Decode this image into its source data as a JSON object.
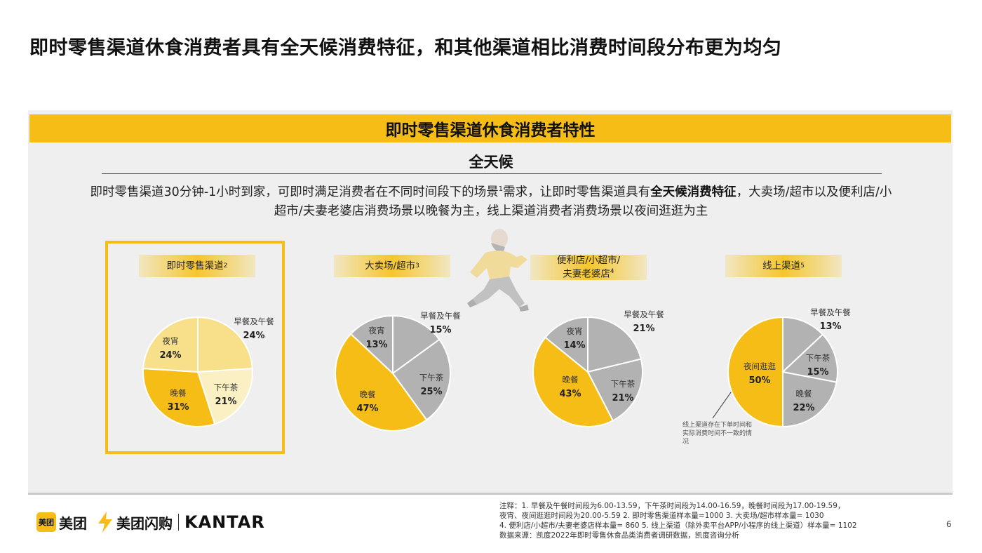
{
  "page": {
    "title": "即时零售渠道休食消费者具有全天候消费特征，和其他渠道相比消费时间段分布更为均匀",
    "banner": "即时零售渠道休食消费者特性",
    "subtitle": "全天候",
    "desc_part1": "即时零售渠道30分钟-1小时到家，可即时满足消费者在不同时间段下的场景",
    "desc_sup": "1",
    "desc_part2": "需求，让即时零售渠道具有",
    "desc_bold": "全天候消费特征",
    "desc_part3": "，大卖场/超市以及便利店/小超市/夫妻老婆店消费场景以晚餐为主，线上渠道消费者消费场景以夜间逛逛为主",
    "side_note": "线上渠道存在下单时间和实际消费时间不一致的情况",
    "page_number": "6"
  },
  "footer": {
    "logo1_box": "美团",
    "logo1_text": "美团",
    "logo2_text": "美团闪购",
    "logo3_text": "KANTAR",
    "note1": "注释：1. 早餐及午餐时间段为6.00-13.59，下午茶时间段为14.00-16.59，晚餐时间段为17.00-19.59，",
    "note2": "夜宵、夜间逛逛时间段为20.00-5.59  2. 即时零售渠道样本量=1000  3. 大卖场/超市样本量= 1030",
    "note3": "4. 便利店/小超市/夫妻老婆店样本量= 860  5. 线上渠道（除外卖平台APP/小程序的线上渠道）样本量= 1102",
    "note4": "数据来源：凯度2022年即时零售休食品类消费者调研数据，凯度咨询分析"
  },
  "colors": {
    "accent": "#f6bd16",
    "light_yellow": "#f8e08a",
    "pale_yellow": "#fbf0c4",
    "grey": "#b2b2b2"
  },
  "chart_data": [
    {
      "type": "pie",
      "title": "即时零售渠道",
      "title_sup": "2",
      "slices": [
        {
          "label": "早餐及午餐",
          "value": 24,
          "display": "24%",
          "color": "#f8e08a"
        },
        {
          "label": "下午茶",
          "value": 21,
          "display": "21%",
          "color": "#fbf0c4"
        },
        {
          "label": "晚餐",
          "value": 31,
          "display": "31%",
          "color": "#f6bd16"
        },
        {
          "label": "夜宵",
          "value": 24,
          "display": "24%",
          "color": "#f8e08a"
        }
      ]
    },
    {
      "type": "pie",
      "title": "大卖场/超市",
      "title_sup": "3",
      "slices": [
        {
          "label": "早餐及午餐",
          "value": 15,
          "display": "15%",
          "color": "#b2b2b2"
        },
        {
          "label": "下午茶",
          "value": 25,
          "display": "25%",
          "color": "#b2b2b2"
        },
        {
          "label": "晚餐",
          "value": 47,
          "display": "47%",
          "color": "#f6bd16"
        },
        {
          "label": "夜宵",
          "value": 13,
          "display": "13%",
          "color": "#b2b2b2"
        }
      ]
    },
    {
      "type": "pie",
      "title": "便利店/小超市/夫妻老婆店",
      "title_line1": "便利店/小超市/",
      "title_line2": "夫妻老婆店",
      "title_sup": "4",
      "slices": [
        {
          "label": "早餐及午餐",
          "value": 21,
          "display": "21%",
          "color": "#b2b2b2"
        },
        {
          "label": "下午茶",
          "value": 21,
          "display": "21%",
          "color": "#b2b2b2"
        },
        {
          "label": "晚餐",
          "value": 43,
          "display": "43%",
          "color": "#f6bd16"
        },
        {
          "label": "夜宵",
          "value": 14,
          "display": "14%",
          "color": "#b2b2b2"
        }
      ]
    },
    {
      "type": "pie",
      "title": "线上渠道",
      "title_sup": "5",
      "slices": [
        {
          "label": "早餐及午餐",
          "value": 13,
          "display": "13%",
          "color": "#b2b2b2"
        },
        {
          "label": "下午茶",
          "value": 15,
          "display": "15%",
          "color": "#b2b2b2"
        },
        {
          "label": "晚餐",
          "value": 22,
          "display": "22%",
          "color": "#b2b2b2"
        },
        {
          "label": "夜间逛逛",
          "value": 50,
          "display": "50%",
          "color": "#f6bd16"
        }
      ]
    }
  ]
}
